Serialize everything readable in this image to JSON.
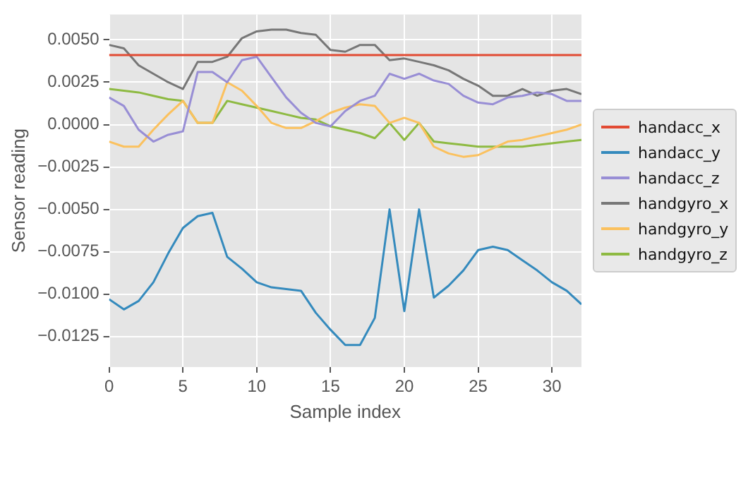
{
  "chart_data": {
    "type": "line",
    "xlabel": "Sample index",
    "ylabel": "Sensor reading",
    "x": [
      0,
      1,
      2,
      3,
      4,
      5,
      6,
      7,
      8,
      9,
      10,
      11,
      12,
      13,
      14,
      15,
      16,
      17,
      18,
      19,
      20,
      21,
      22,
      23,
      24,
      25,
      26,
      27,
      28,
      29,
      30,
      31,
      32
    ],
    "xlim": [
      0,
      32
    ],
    "xticks": [
      0,
      5,
      10,
      15,
      20,
      25,
      30
    ],
    "ylim": [
      -0.0143,
      0.0065
    ],
    "yticks": [
      {
        "value": -0.0125,
        "label": "−0.0125"
      },
      {
        "value": -0.01,
        "label": "−0.0100"
      },
      {
        "value": -0.0075,
        "label": "−0.0075"
      },
      {
        "value": -0.005,
        "label": "−0.0050"
      },
      {
        "value": -0.0025,
        "label": "−0.0025"
      },
      {
        "value": 0,
        "label": "0.0000"
      },
      {
        "value": 0.0025,
        "label": "0.0025"
      },
      {
        "value": 0.005,
        "label": "0.0050"
      }
    ],
    "grid": true,
    "legend": "right",
    "marker": "none",
    "line_style": "solid",
    "series": [
      {
        "name": "handacc_x",
        "color": "#e24a33",
        "values": [
          0.0041,
          0.0041,
          0.0041,
          0.0041,
          0.0041,
          0.0041,
          0.0041,
          0.0041,
          0.0041,
          0.0041,
          0.0041,
          0.0041,
          0.0041,
          0.0041,
          0.0041,
          0.0041,
          0.0041,
          0.0041,
          0.0041,
          0.0041,
          0.0041,
          0.0041,
          0.0041,
          0.0041,
          0.0041,
          0.0041,
          0.0041,
          0.0041,
          0.0041,
          0.0041,
          0.0041,
          0.0041,
          0.0041
        ]
      },
      {
        "name": "handacc_y",
        "color": "#348abd",
        "values": [
          -0.0103,
          -0.0109,
          -0.0104,
          -0.0093,
          -0.0076,
          -0.0061,
          -0.0054,
          -0.0052,
          -0.0078,
          -0.0085,
          -0.0093,
          -0.0096,
          -0.0097,
          -0.0098,
          -0.0111,
          -0.0121,
          -0.013,
          -0.013,
          -0.0114,
          -0.005,
          -0.011,
          -0.005,
          -0.0102,
          -0.0095,
          -0.0086,
          -0.0074,
          -0.0072,
          -0.0074,
          -0.008,
          -0.0086,
          -0.0093,
          -0.0098,
          -0.0106
        ]
      },
      {
        "name": "handacc_z",
        "color": "#988ed5",
        "values": [
          0.0016,
          0.0011,
          -0.0003,
          -0.001,
          -0.0006,
          -0.0004,
          0.0031,
          0.0031,
          0.0025,
          0.0038,
          0.004,
          0.0028,
          0.0016,
          0.0007,
          0.0001,
          -0.0001,
          0.0008,
          0.0014,
          0.0017,
          0.003,
          0.0027,
          0.003,
          0.0026,
          0.0024,
          0.0017,
          0.0013,
          0.0012,
          0.0016,
          0.0017,
          0.0019,
          0.0018,
          0.0014,
          0.0014
        ]
      },
      {
        "name": "handgyro_x",
        "color": "#777777",
        "values": [
          0.0047,
          0.0045,
          0.0035,
          0.003,
          0.0025,
          0.0021,
          0.0037,
          0.0037,
          0.004,
          0.0051,
          0.0055,
          0.0056,
          0.0056,
          0.0054,
          0.0053,
          0.0044,
          0.0043,
          0.0047,
          0.0047,
          0.0038,
          0.0039,
          0.0037,
          0.0035,
          0.0032,
          0.0027,
          0.0023,
          0.0017,
          0.0017,
          0.0021,
          0.0017,
          0.002,
          0.0021,
          0.0018
        ]
      },
      {
        "name": "handgyro_y",
        "color": "#fbc15e",
        "values": [
          -0.001,
          -0.0013,
          -0.0013,
          -0.0003,
          0.0006,
          0.0014,
          0.0001,
          0.0001,
          0.0025,
          0.002,
          0.0011,
          0.0001,
          -0.0002,
          -0.0002,
          0.0002,
          0.0007,
          0.001,
          0.0012,
          0.0011,
          0.0001,
          0.0004,
          0.0001,
          -0.0013,
          -0.0017,
          -0.0019,
          -0.0018,
          -0.0014,
          -0.001,
          -0.0009,
          -0.0007,
          -0.0005,
          -0.0003,
          0
        ]
      },
      {
        "name": "handgyro_z",
        "color": "#8eba42",
        "values": [
          0.0021,
          0.002,
          0.0019,
          0.0017,
          0.0015,
          0.0014,
          0.0001,
          0.0001,
          0.0014,
          0.0012,
          0.001,
          0.0008,
          0.0006,
          0.0004,
          0.0003,
          -0.0001,
          -0.0003,
          -0.0005,
          -0.0008,
          0.0001,
          -0.0009,
          0.0001,
          -0.001,
          -0.0011,
          -0.0012,
          -0.0013,
          -0.0013,
          -0.0013,
          -0.0013,
          -0.0012,
          -0.0011,
          -0.001,
          -0.0009
        ]
      }
    ]
  }
}
